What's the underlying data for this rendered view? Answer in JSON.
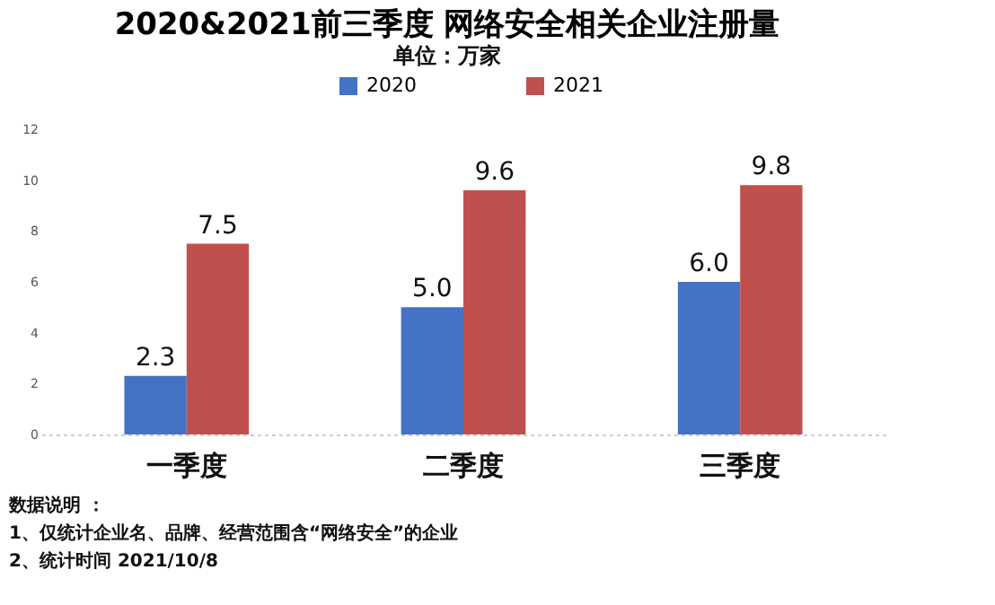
{
  "chart_data": {
    "type": "bar",
    "title": "2020&2021前三季度 网络安全相关企业注册量",
    "subtitle": "单位：万家",
    "categories": [
      "一季度",
      "二季度",
      "三季度"
    ],
    "series": [
      {
        "name": "2020",
        "color": "#4472c4",
        "values": [
          2.3,
          5.0,
          6.0
        ],
        "value_labels": [
          "2.3",
          "5.0",
          "6.0"
        ]
      },
      {
        "name": "2021",
        "color": "#c0504d",
        "values": [
          7.5,
          9.6,
          9.8
        ],
        "value_labels": [
          "7.5",
          "9.6",
          "9.8"
        ]
      }
    ],
    "ylim": [
      0,
      12
    ],
    "yticks": [
      0,
      2,
      4,
      6,
      8,
      10,
      12
    ],
    "grid": false,
    "legend": "top",
    "annotations": [
      "数据说明 ：",
      "1、仅统计企业名、品牌、经营范围含“网络安全”的企业",
      "2、统计时间 2021/10/8"
    ]
  }
}
